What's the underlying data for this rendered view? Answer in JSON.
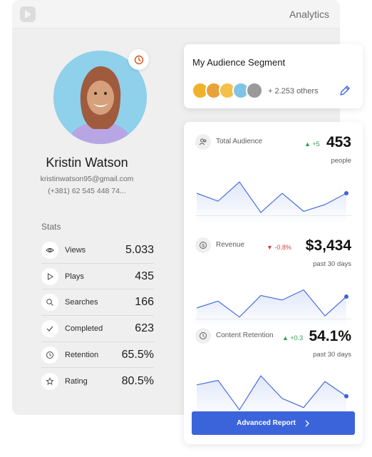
{
  "app": {
    "title": "Analytics"
  },
  "profile": {
    "name": "Kristin Watson",
    "email": "kristinwatson95@gmail.com",
    "phone": "(+381) 62 545 448 74..."
  },
  "stats": {
    "title": "Stats",
    "items": [
      {
        "label": "Views",
        "value": "5.033",
        "icon": "eye-icon"
      },
      {
        "label": "Plays",
        "value": "435",
        "icon": "play-icon"
      },
      {
        "label": "Searches",
        "value": "166",
        "icon": "search-icon"
      },
      {
        "label": "Completed",
        "value": "623",
        "icon": "check-icon"
      },
      {
        "label": "Retention",
        "value": "65.5%",
        "icon": "clock-icon"
      },
      {
        "label": "Rating",
        "value": "80.5%",
        "icon": "star-icon"
      }
    ]
  },
  "segment": {
    "title": "My Audience Segment",
    "others": "+ 2.253 others"
  },
  "metrics": [
    {
      "label": "Total Audience",
      "change": "+5",
      "direction": "up",
      "value": "453",
      "sub": "people",
      "icon": "users-icon",
      "series": [
        3,
        2.3,
        4,
        1.3,
        3,
        1.4,
        2,
        3
      ]
    },
    {
      "label": "Revenue",
      "change": "-0.8%",
      "direction": "down",
      "value": "$3,434",
      "sub": "past 30 days",
      "icon": "dollar-icon",
      "series": [
        2,
        2.6,
        1.2,
        3.1,
        2.7,
        3.6,
        1.3,
        3
      ]
    },
    {
      "label": "Content Retention",
      "change": "+0.3",
      "direction": "up",
      "value": "54.1%",
      "sub": "past 30 days",
      "icon": "clock-icon",
      "series": [
        3.2,
        3.6,
        1,
        4,
        2,
        1.2,
        3.5,
        2.2
      ]
    }
  ],
  "actions": {
    "advanced_report": "Advanced Report"
  },
  "colors": {
    "accent": "#3b64db",
    "up": "#2f9e4f",
    "down": "#d94141",
    "badge": "#d9531e"
  }
}
